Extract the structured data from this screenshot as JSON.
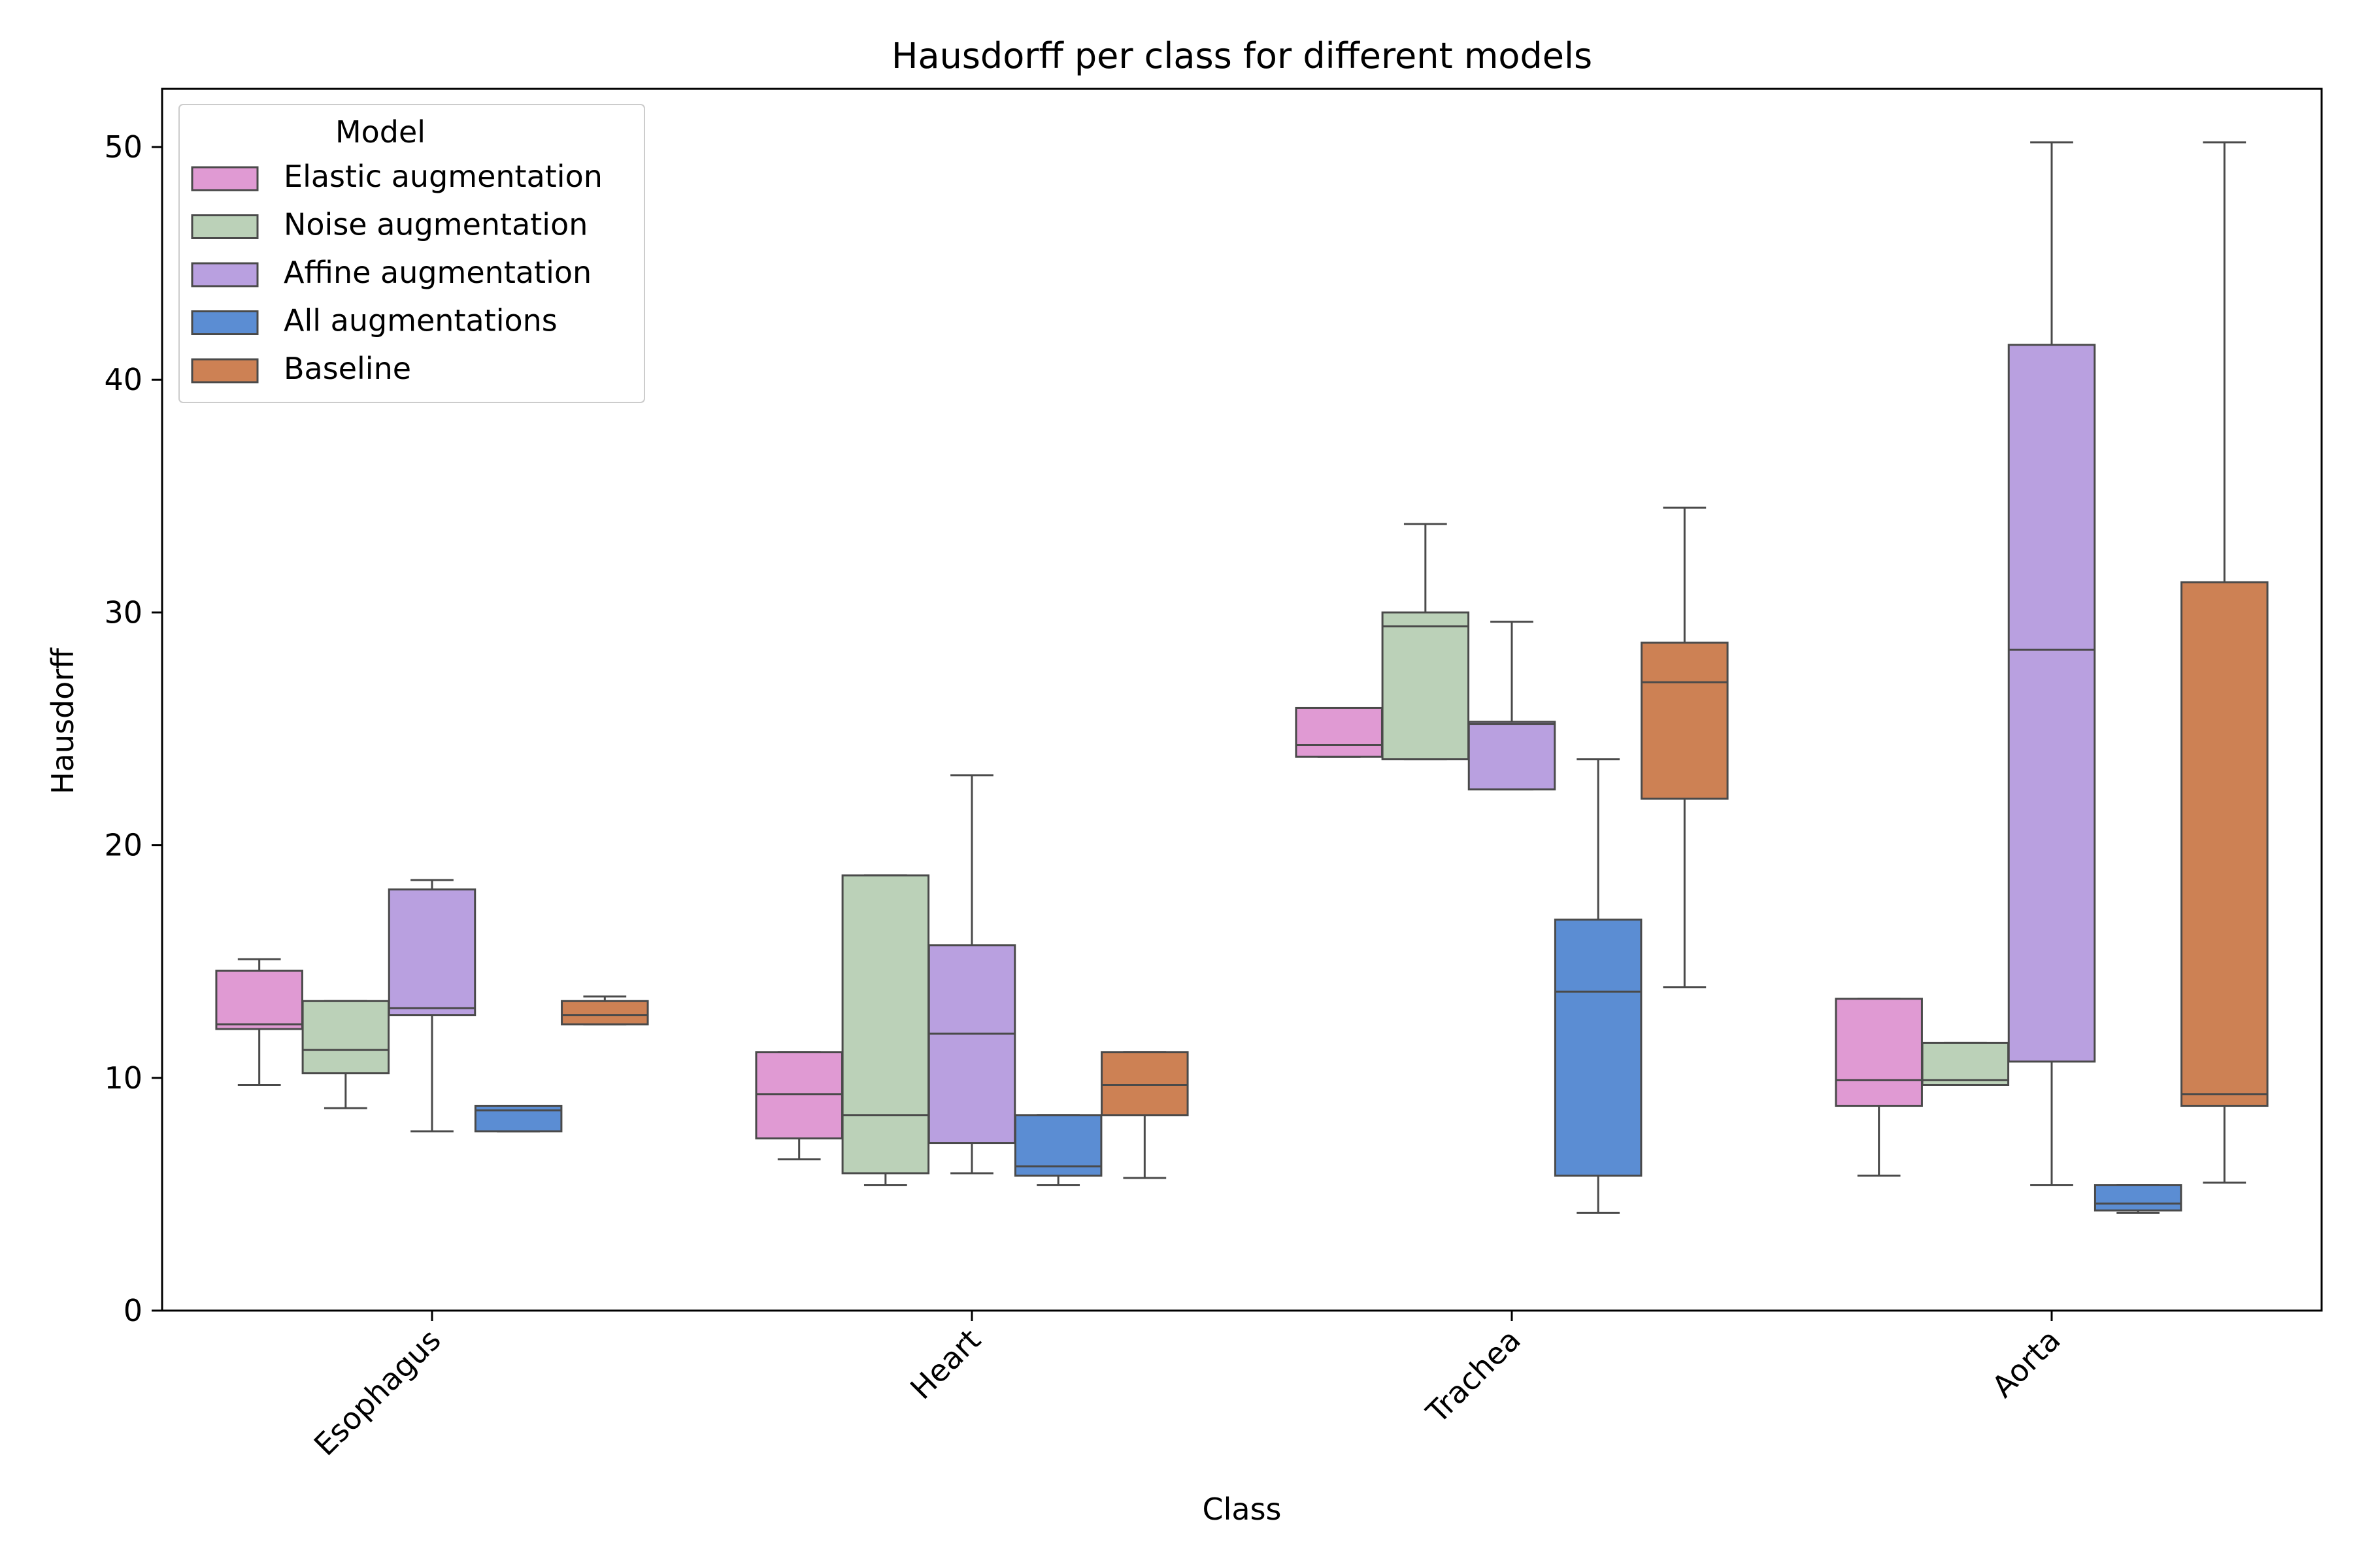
{
  "chart_data": {
    "type": "box",
    "title": "Hausdorff per class for different models",
    "xlabel": "Class",
    "ylabel": "Hausdorff",
    "ylim": [
      0,
      52.5
    ],
    "yticks": [
      0,
      10,
      20,
      30,
      40,
      50
    ],
    "categories": [
      "Esophagus",
      "Heart",
      "Trachea",
      "Aorta"
    ],
    "legend": {
      "title": "Model",
      "placement": "top-left"
    },
    "grid": false,
    "series": [
      {
        "name": "Elastic augmentation",
        "color": "#e09ad3",
        "boxes": [
          {
            "whisker_low": 9.7,
            "q1": 12.1,
            "median": 12.3,
            "q3": 14.6,
            "whisker_high": 15.1
          },
          {
            "whisker_low": 6.5,
            "q1": 7.4,
            "median": 9.3,
            "q3": 11.1,
            "whisker_high": 11.1
          },
          {
            "whisker_low": 23.8,
            "q1": 23.8,
            "median": 24.3,
            "q3": 25.9,
            "whisker_high": 25.9
          },
          {
            "whisker_low": 5.8,
            "q1": 8.8,
            "median": 9.9,
            "q3": 13.4,
            "whisker_high": 13.4
          }
        ]
      },
      {
        "name": "Noise augmentation",
        "color": "#bbd1b8",
        "boxes": [
          {
            "whisker_low": 8.7,
            "q1": 10.2,
            "median": 11.2,
            "q3": 13.3,
            "whisker_high": 13.3
          },
          {
            "whisker_low": 5.4,
            "q1": 5.9,
            "median": 8.4,
            "q3": 18.7,
            "whisker_high": 18.7
          },
          {
            "whisker_low": 23.7,
            "q1": 23.7,
            "median": 29.4,
            "q3": 30.0,
            "whisker_high": 33.8
          },
          {
            "whisker_low": 9.7,
            "q1": 9.7,
            "median": 9.9,
            "q3": 11.5,
            "whisker_high": 11.5
          }
        ]
      },
      {
        "name": "Affine augmentation",
        "color": "#b9a0e0",
        "boxes": [
          {
            "whisker_low": 7.7,
            "q1": 12.7,
            "median": 13.0,
            "q3": 18.1,
            "whisker_high": 18.5
          },
          {
            "whisker_low": 5.9,
            "q1": 7.2,
            "median": 11.9,
            "q3": 15.7,
            "whisker_high": 23.0
          },
          {
            "whisker_low": 22.4,
            "q1": 22.4,
            "median": 25.2,
            "q3": 25.3,
            "whisker_high": 29.6
          },
          {
            "whisker_low": 5.4,
            "q1": 10.7,
            "median": 28.4,
            "q3": 41.5,
            "whisker_high": 50.2
          }
        ]
      },
      {
        "name": "All augmentations",
        "color": "#5b8dd3",
        "boxes": [
          {
            "whisker_low": 7.7,
            "q1": 7.7,
            "median": 8.6,
            "q3": 8.8,
            "whisker_high": 8.8
          },
          {
            "whisker_low": 5.4,
            "q1": 5.8,
            "median": 6.2,
            "q3": 8.4,
            "whisker_high": 8.4
          },
          {
            "whisker_low": 4.2,
            "q1": 5.8,
            "median": 13.7,
            "q3": 16.8,
            "whisker_high": 23.7
          },
          {
            "whisker_low": 4.2,
            "q1": 4.3,
            "median": 4.6,
            "q3": 5.4,
            "whisker_high": 5.4
          }
        ]
      },
      {
        "name": "Baseline",
        "color": "#cd8154",
        "boxes": [
          {
            "whisker_low": 12.3,
            "q1": 12.3,
            "median": 12.7,
            "q3": 13.3,
            "whisker_high": 13.5
          },
          {
            "whisker_low": 5.7,
            "q1": 8.4,
            "median": 9.7,
            "q3": 11.1,
            "whisker_high": 11.1
          },
          {
            "whisker_low": 13.9,
            "q1": 22.0,
            "median": 27.0,
            "q3": 28.7,
            "whisker_high": 34.5
          },
          {
            "whisker_low": 5.5,
            "q1": 8.8,
            "median": 9.3,
            "q3": 31.3,
            "whisker_high": 50.2
          }
        ]
      }
    ]
  }
}
